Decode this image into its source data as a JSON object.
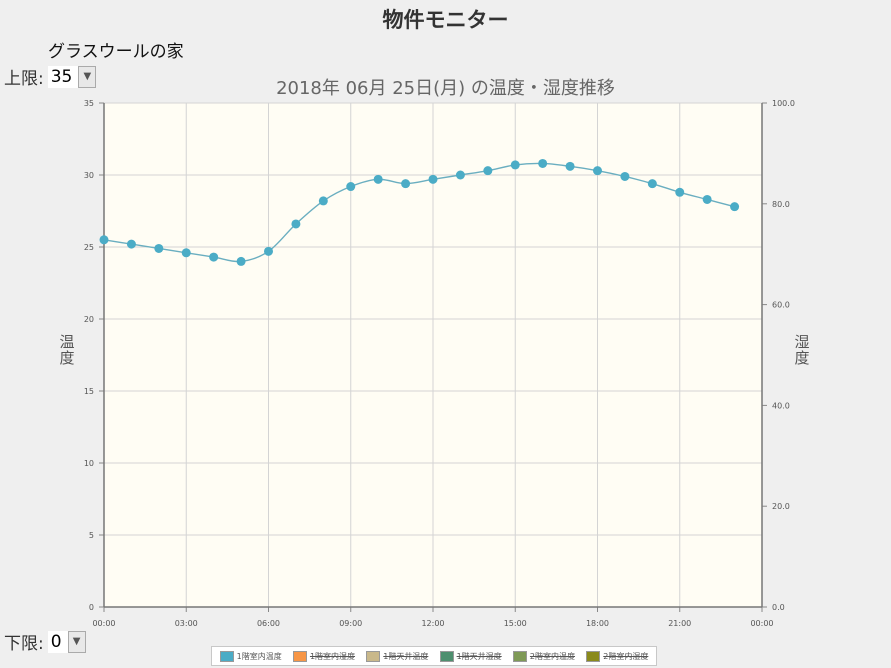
{
  "page": {
    "title": "物件モニター",
    "property_name": "グラスウールの家",
    "upper_label": "上限:",
    "upper_value": "35",
    "lower_label": "下限:",
    "lower_value": "0"
  },
  "chart_data": {
    "type": "line",
    "title": "2018年 06月 25日(月) の温度・湿度推移",
    "ylabel_left": "温度",
    "ylabel_right": "湿度",
    "ylim": [
      0,
      35
    ],
    "y2lim": [
      0,
      100
    ],
    "yticks": [
      "0",
      "5",
      "10",
      "15",
      "20",
      "25",
      "30",
      "35"
    ],
    "y2ticks": [
      "0.0",
      "20.0",
      "40.0",
      "60.0",
      "80.0",
      "100.0"
    ],
    "xlim": [
      0,
      24
    ],
    "xticks": [
      {
        "v": 0,
        "label": "00:00"
      },
      {
        "v": 3,
        "label": "03:00"
      },
      {
        "v": 6,
        "label": "06:00"
      },
      {
        "v": 9,
        "label": "09:00"
      },
      {
        "v": 12,
        "label": "12:00"
      },
      {
        "v": 15,
        "label": "15:00"
      },
      {
        "v": 18,
        "label": "18:00"
      },
      {
        "v": 21,
        "label": "21:00"
      },
      {
        "v": 24,
        "label": "00:00"
      }
    ],
    "grid": true,
    "series": [
      {
        "name": "1階室内温度",
        "color": "#4bacc6",
        "visible": true,
        "x": [
          0,
          1,
          2,
          3,
          4,
          5,
          6,
          7,
          8,
          9,
          10,
          11,
          12,
          13,
          14,
          15,
          16,
          17,
          18,
          19,
          20,
          21,
          22,
          23
        ],
        "values": [
          25.5,
          25.2,
          24.9,
          24.6,
          24.3,
          24.0,
          24.7,
          26.6,
          28.2,
          29.2,
          29.7,
          29.4,
          29.7,
          30.0,
          30.3,
          30.7,
          30.8,
          30.6,
          30.3,
          29.9,
          29.4,
          28.8,
          28.3,
          27.8
        ]
      }
    ],
    "legend": [
      {
        "name": "1階室内温度",
        "color": "#4bacc6",
        "visible": true
      },
      {
        "name": "1階室内湿度",
        "color": "#f79646",
        "visible": false
      },
      {
        "name": "1階天井温度",
        "color": "#c9b88a",
        "visible": false
      },
      {
        "name": "1階天井湿度",
        "color": "#4e8f6f",
        "visible": false
      },
      {
        "name": "2階室内温度",
        "color": "#7f9a57",
        "visible": false
      },
      {
        "name": "2階室内湿度",
        "color": "#8a8a1c",
        "visible": false
      }
    ],
    "legend_position": "bottom",
    "plot_background": "#fffdf4"
  }
}
